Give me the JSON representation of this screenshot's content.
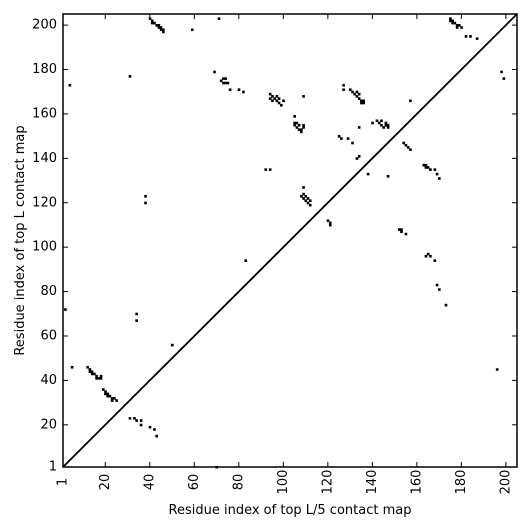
{
  "chart_data": {
    "type": "scatter",
    "xlabel": "Residue index of top L/5 contact map",
    "ylabel": "Residue index of top L contact map",
    "xlim": [
      1,
      205
    ],
    "ylim": [
      1,
      205
    ],
    "xticks": [
      "1",
      "20",
      "40",
      "60",
      "80",
      "100",
      "120",
      "140",
      "160",
      "180",
      "200"
    ],
    "yticks": [
      "1",
      "20",
      "40",
      "60",
      "80",
      "100",
      "120",
      "140",
      "160",
      "180",
      "200"
    ],
    "xtick_values": [
      1,
      20,
      40,
      60,
      80,
      100,
      120,
      140,
      160,
      180,
      200
    ],
    "ytick_values": [
      1,
      20,
      40,
      60,
      80,
      100,
      120,
      140,
      160,
      180,
      200
    ],
    "diagonal": true,
    "series": [
      {
        "points": [
          [
            2,
            72
          ],
          [
            5,
            46
          ],
          [
            4,
            173
          ],
          [
            12,
            46
          ],
          [
            13,
            45
          ],
          [
            13,
            44
          ],
          [
            14,
            44
          ],
          [
            14,
            43
          ],
          [
            15,
            43
          ],
          [
            16,
            42
          ],
          [
            16,
            41
          ],
          [
            17,
            41
          ],
          [
            18,
            41
          ],
          [
            18,
            42
          ],
          [
            19,
            36
          ],
          [
            20,
            35
          ],
          [
            20,
            34
          ],
          [
            21,
            34
          ],
          [
            21,
            33
          ],
          [
            22,
            33
          ],
          [
            23,
            32
          ],
          [
            23,
            31
          ],
          [
            24,
            32
          ],
          [
            25,
            31
          ],
          [
            31,
            23
          ],
          [
            33,
            23
          ],
          [
            34,
            22
          ],
          [
            36,
            22
          ],
          [
            36,
            20
          ],
          [
            40,
            19
          ],
          [
            42,
            18
          ],
          [
            43,
            15
          ],
          [
            34,
            67
          ],
          [
            34,
            70
          ],
          [
            38,
            120
          ],
          [
            38,
            123
          ],
          [
            50,
            56
          ],
          [
            31,
            177
          ],
          [
            40,
            203
          ],
          [
            41,
            202
          ],
          [
            41,
            201
          ],
          [
            42,
            201
          ],
          [
            43,
            200
          ],
          [
            44,
            200
          ],
          [
            44,
            199
          ],
          [
            45,
            199
          ],
          [
            45,
            198
          ],
          [
            46,
            198
          ],
          [
            46,
            197
          ],
          [
            59,
            198
          ],
          [
            70,
            1
          ],
          [
            71,
            203
          ],
          [
            69,
            179
          ],
          [
            72,
            175
          ],
          [
            73,
            176
          ],
          [
            73,
            174
          ],
          [
            74,
            174
          ],
          [
            74,
            176
          ],
          [
            75,
            174
          ],
          [
            76,
            171
          ],
          [
            80,
            171
          ],
          [
            82,
            170
          ],
          [
            83,
            94
          ],
          [
            92,
            135
          ],
          [
            94,
            135
          ],
          [
            94,
            169
          ],
          [
            94,
            167
          ],
          [
            95,
            168
          ],
          [
            95,
            166
          ],
          [
            96,
            167
          ],
          [
            97,
            168
          ],
          [
            97,
            166
          ],
          [
            98,
            167
          ],
          [
            98,
            165
          ],
          [
            99,
            164
          ],
          [
            100,
            166
          ],
          [
            105,
            159
          ],
          [
            105,
            156
          ],
          [
            105,
            155
          ],
          [
            106,
            156
          ],
          [
            106,
            154
          ],
          [
            107,
            155
          ],
          [
            107,
            153
          ],
          [
            108,
            153
          ],
          [
            108,
            152
          ],
          [
            109,
            155
          ],
          [
            109,
            154
          ],
          [
            109,
            168
          ],
          [
            108,
            123
          ],
          [
            109,
            124
          ],
          [
            109,
            122
          ],
          [
            109,
            127
          ],
          [
            110,
            123
          ],
          [
            110,
            121
          ],
          [
            111,
            122
          ],
          [
            111,
            120
          ],
          [
            112,
            121
          ],
          [
            112,
            119
          ],
          [
            120,
            112
          ],
          [
            121,
            110
          ],
          [
            121,
            111
          ],
          [
            125,
            150
          ],
          [
            126,
            149
          ],
          [
            127,
            173
          ],
          [
            127,
            171
          ],
          [
            129,
            149
          ],
          [
            130,
            171
          ],
          [
            131,
            170
          ],
          [
            131,
            147
          ],
          [
            132,
            169
          ],
          [
            133,
            170
          ],
          [
            133,
            168
          ],
          [
            134,
            169
          ],
          [
            134,
            167
          ],
          [
            135,
            166
          ],
          [
            135,
            165
          ],
          [
            136,
            166
          ],
          [
            136,
            165
          ],
          [
            133,
            140
          ],
          [
            134,
            141
          ],
          [
            134,
            154
          ],
          [
            138,
            133
          ],
          [
            140,
            156
          ],
          [
            142,
            157
          ],
          [
            143,
            156
          ],
          [
            144,
            157
          ],
          [
            144,
            155
          ],
          [
            145,
            154
          ],
          [
            146,
            156
          ],
          [
            146,
            155
          ],
          [
            147,
            154
          ],
          [
            147,
            155
          ],
          [
            147,
            132
          ],
          [
            152,
            108
          ],
          [
            153,
            107
          ],
          [
            153,
            108
          ],
          [
            155,
            106
          ],
          [
            154,
            147
          ],
          [
            155,
            146
          ],
          [
            156,
            145
          ],
          [
            157,
            144
          ],
          [
            157,
            166
          ],
          [
            163,
            137
          ],
          [
            164,
            136
          ],
          [
            164,
            137
          ],
          [
            165,
            136
          ],
          [
            166,
            135
          ],
          [
            168,
            135
          ],
          [
            169,
            133
          ],
          [
            170,
            131
          ],
          [
            164,
            96
          ],
          [
            165,
            97
          ],
          [
            166,
            96
          ],
          [
            168,
            94
          ],
          [
            169,
            83
          ],
          [
            170,
            81
          ],
          [
            173,
            74
          ],
          [
            175,
            203
          ],
          [
            175,
            202
          ],
          [
            176,
            202
          ],
          [
            176,
            201
          ],
          [
            177,
            201
          ],
          [
            178,
            200
          ],
          [
            178,
            199
          ],
          [
            179,
            200
          ],
          [
            180,
            199
          ],
          [
            182,
            195
          ],
          [
            184,
            195
          ],
          [
            187,
            194
          ],
          [
            196,
            45
          ],
          [
            198,
            179
          ],
          [
            199,
            176
          ]
        ]
      }
    ]
  }
}
